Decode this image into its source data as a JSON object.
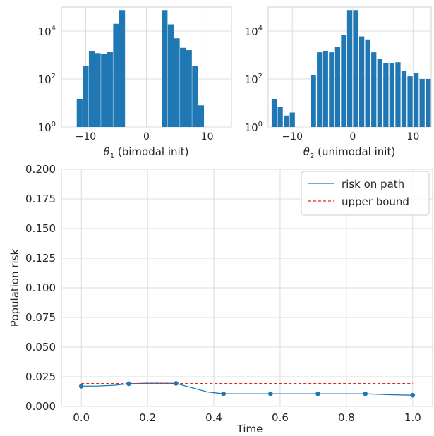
{
  "chart_data": [
    {
      "type": "bar",
      "subtype": "histogram",
      "xlabel_symbol": "θ",
      "xlabel_sub": "1",
      "xlabel_rest": " (bimodal init)",
      "yscale": "log",
      "xlim": [
        -14,
        14
      ],
      "ylim": [
        1,
        100000
      ],
      "xticks": [
        "-10",
        "0",
        "10"
      ],
      "xtick_values": [
        -10,
        0,
        10
      ],
      "yticks": [
        {
          "base": "10",
          "exp": "0"
        },
        {
          "base": "10",
          "exp": "2"
        },
        {
          "base": "10",
          "exp": "4"
        }
      ],
      "ytick_values": [
        1,
        100,
        10000
      ],
      "bin_width": 0.95,
      "bins": [
        {
          "x": -11.0,
          "y": 15
        },
        {
          "x": -10.0,
          "y": 350
        },
        {
          "x": -9.0,
          "y": 1500
        },
        {
          "x": -8.0,
          "y": 1200
        },
        {
          "x": -7.0,
          "y": 1150
        },
        {
          "x": -6.0,
          "y": 1400
        },
        {
          "x": -5.0,
          "y": 20000
        },
        {
          "x": -4.0,
          "y": 75000
        },
        {
          "x": 3.0,
          "y": 75000
        },
        {
          "x": 4.0,
          "y": 19000
        },
        {
          "x": 5.0,
          "y": 5000
        },
        {
          "x": 6.0,
          "y": 2000
        },
        {
          "x": 7.0,
          "y": 1600
        },
        {
          "x": 8.0,
          "y": 350
        },
        {
          "x": 9.0,
          "y": 8
        }
      ],
      "color": "#1f77b4",
      "grid": true
    },
    {
      "type": "bar",
      "subtype": "histogram",
      "xlabel_symbol": "θ",
      "xlabel_sub": "2",
      "xlabel_rest": " (unimodal init)",
      "yscale": "log",
      "xlim": [
        -14,
        13
      ],
      "ylim": [
        1,
        100000
      ],
      "xticks": [
        "-10",
        "0",
        "10"
      ],
      "xtick_values": [
        -10,
        0,
        10
      ],
      "yticks": [
        {
          "base": "10",
          "exp": "0"
        },
        {
          "base": "10",
          "exp": "2"
        },
        {
          "base": "10",
          "exp": "4"
        }
      ],
      "ytick_values": [
        1,
        100,
        10000
      ],
      "bin_width": 0.85,
      "bins": [
        {
          "x": -13.0,
          "y": 15
        },
        {
          "x": -12.0,
          "y": 7
        },
        {
          "x": -11.0,
          "y": 3
        },
        {
          "x": -10.0,
          "y": 4
        },
        {
          "x": -6.5,
          "y": 140
        },
        {
          "x": -5.5,
          "y": 1300
        },
        {
          "x": -4.5,
          "y": 1500
        },
        {
          "x": -3.5,
          "y": 1300
        },
        {
          "x": -2.5,
          "y": 2200
        },
        {
          "x": -1.5,
          "y": 7000
        },
        {
          "x": -0.5,
          "y": 75000
        },
        {
          "x": 0.5,
          "y": 75000
        },
        {
          "x": 1.5,
          "y": 6000
        },
        {
          "x": 2.5,
          "y": 4500
        },
        {
          "x": 3.5,
          "y": 1300
        },
        {
          "x": 4.5,
          "y": 700
        },
        {
          "x": 5.5,
          "y": 450
        },
        {
          "x": 6.5,
          "y": 450
        },
        {
          "x": 7.5,
          "y": 500
        },
        {
          "x": 8.5,
          "y": 220
        },
        {
          "x": 9.5,
          "y": 130
        },
        {
          "x": 10.5,
          "y": 180
        },
        {
          "x": 11.5,
          "y": 100
        },
        {
          "x": 12.5,
          "y": 100
        },
        {
          "x": 13.5,
          "y": 90
        }
      ],
      "color": "#1f77b4",
      "grid": true
    },
    {
      "type": "line",
      "xlabel": "Time",
      "ylabel": "Population risk",
      "xlim": [
        -0.06,
        1.06
      ],
      "ylim": [
        0.0,
        0.2
      ],
      "xticks": [
        "0.0",
        "0.2",
        "0.4",
        "0.6",
        "0.8",
        "1.0"
      ],
      "xtick_values": [
        0.0,
        0.2,
        0.4,
        0.6,
        0.8,
        1.0
      ],
      "yticks": [
        "0.000",
        "0.025",
        "0.050",
        "0.075",
        "0.100",
        "0.125",
        "0.150",
        "0.175",
        "0.200"
      ],
      "ytick_values": [
        0.0,
        0.025,
        0.05,
        0.075,
        0.1,
        0.125,
        0.15,
        0.175,
        0.2
      ],
      "grid": true,
      "legend_position": "upper-right",
      "series": [
        {
          "name": "risk on path",
          "style": "solid",
          "color": "#1f77b4",
          "x": [
            0.0,
            0.05,
            0.1,
            0.143,
            0.2,
            0.25,
            0.286,
            0.33,
            0.38,
            0.429,
            0.5,
            0.571,
            0.64,
            0.714,
            0.78,
            0.857,
            0.93,
            1.0
          ],
          "y": [
            0.017,
            0.0172,
            0.0178,
            0.0191,
            0.0195,
            0.0195,
            0.0194,
            0.016,
            0.0122,
            0.0106,
            0.0106,
            0.0106,
            0.0106,
            0.0106,
            0.0106,
            0.0106,
            0.0098,
            0.0094
          ],
          "markers_x": [
            0.0,
            0.143,
            0.286,
            0.429,
            0.571,
            0.714,
            0.857,
            1.0
          ],
          "markers_y": [
            0.017,
            0.0191,
            0.0194,
            0.0106,
            0.0106,
            0.0106,
            0.0106,
            0.0094
          ]
        },
        {
          "name": "upper bound",
          "style": "dashed",
          "color": "#d62728",
          "x": [
            0.0,
            1.0
          ],
          "y": [
            0.0192,
            0.0192
          ]
        }
      ]
    }
  ]
}
